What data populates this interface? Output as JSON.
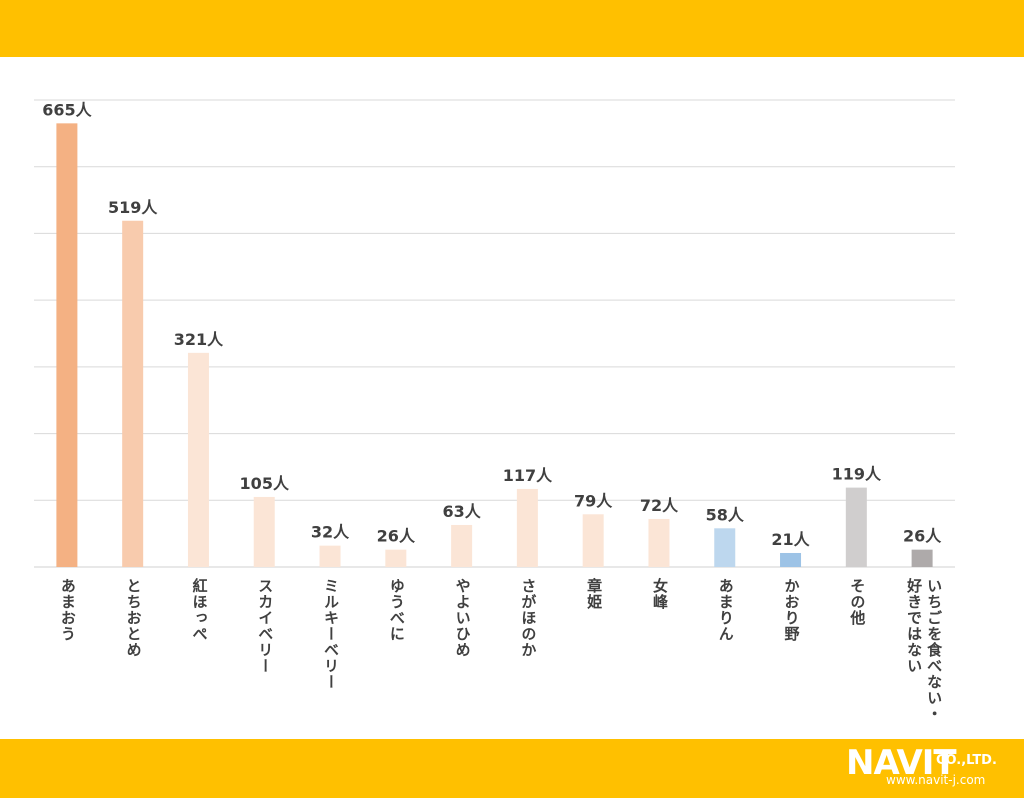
{
  "chart_data": {
    "type": "bar",
    "title": "",
    "xlabel": "",
    "ylabel": "",
    "ylim": [
      0,
      700
    ],
    "grid": true,
    "value_suffix": "人",
    "categories": [
      "あまおう",
      "とちおとめ",
      "紅ほっぺ",
      "スカイベリー",
      "ミルキーベリー",
      "ゆうべに",
      "やよいひめ",
      "さがほのか",
      "章姫",
      "女峰",
      "あまりん",
      "かおり野",
      "その他",
      "いちごを食べない・好きではない"
    ],
    "values": [
      665,
      519,
      321,
      105,
      32,
      26,
      63,
      117,
      79,
      72,
      58,
      21,
      119,
      26
    ],
    "data_labels": [
      "665人",
      "519人",
      "321人",
      "105人",
      "32人",
      "26人",
      "63人",
      "117人",
      "79人",
      "72人",
      "58人",
      "21人",
      "119人",
      "26人"
    ],
    "colors": [
      "#f4b183",
      "#f8cbad",
      "#fbe5d6",
      "#fbe5d6",
      "#fbe5d6",
      "#fbe5d6",
      "#fbe5d6",
      "#fbe5d6",
      "#fbe5d6",
      "#fbe5d6",
      "#bdd7ee",
      "#9dc3e6",
      "#d0cece",
      "#aeaaaa"
    ],
    "category_lines": [
      [
        "あまおう"
      ],
      [
        "とちおとめ"
      ],
      [
        "紅ほっぺ"
      ],
      [
        "スカイベリー"
      ],
      [
        "ミルキーベリー"
      ],
      [
        "ゆうべに"
      ],
      [
        "やよいひめ"
      ],
      [
        "さがほのか"
      ],
      [
        "章姫"
      ],
      [
        "女峰"
      ],
      [
        "あまりん"
      ],
      [
        "かおり野"
      ],
      [
        "その他"
      ],
      [
        "いちごを食べな",
        "い・好きではない"
      ]
    ]
  },
  "logo": {
    "brand": "NAVIT",
    "suffix": "CO.,LTD.",
    "url": "www.navit-j.com"
  },
  "colors": {
    "band": "#ffc000",
    "grid": "#d9d9d9",
    "label": "#404040"
  }
}
